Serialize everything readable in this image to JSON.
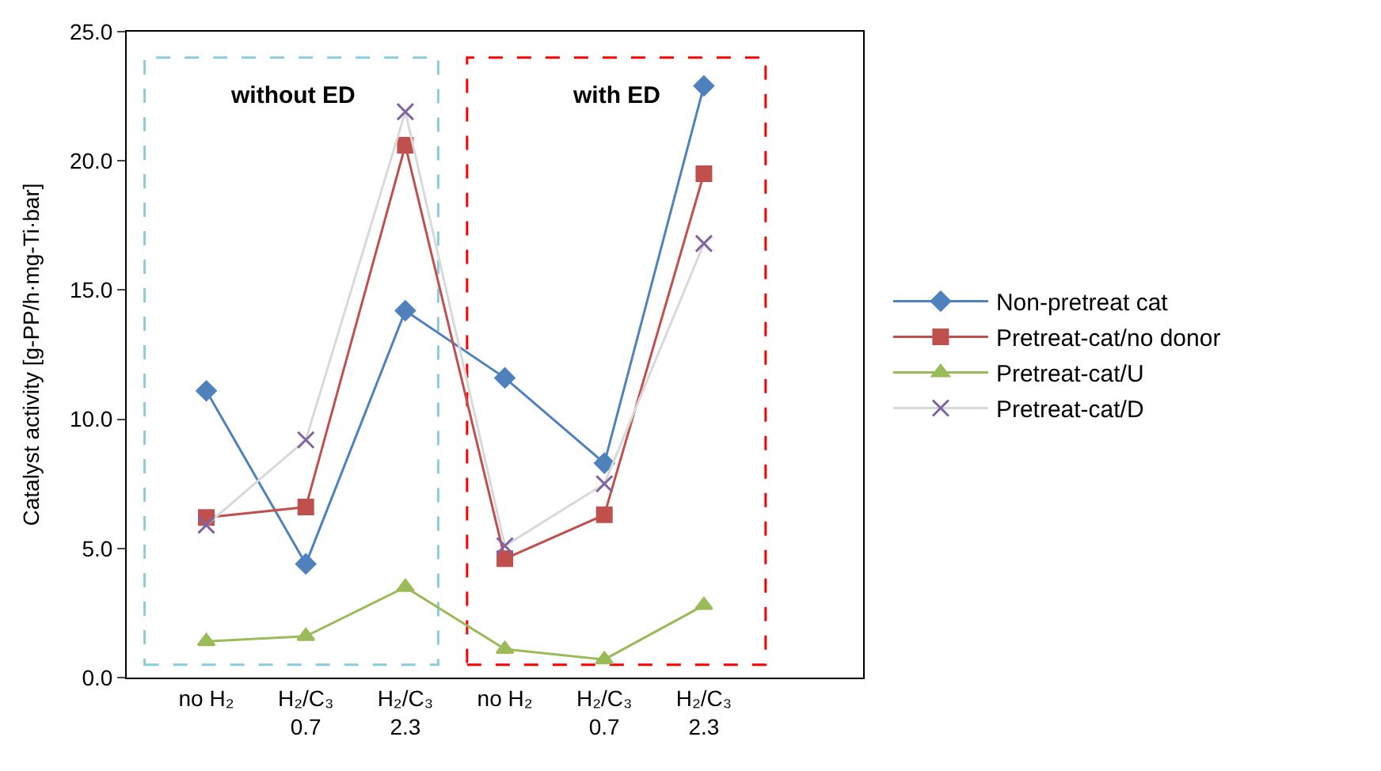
{
  "chart_data": {
    "type": "line",
    "ylabel": "Catalyst activity [g-PP/h·mg-Ti·bar]",
    "categories": [
      "no H₂",
      "H₂/C₃\n0.7",
      "H₂/C₃\n2.3",
      "no H₂",
      "H₂/C₃\n0.7",
      "H₂/C₃\n2.3"
    ],
    "series": [
      {
        "name": "Non-pretreat cat",
        "color": "#4f81bd",
        "marker": "diamond",
        "values": [
          11.1,
          4.4,
          14.2,
          11.6,
          8.3,
          22.9
        ]
      },
      {
        "name": "Pretreat-cat/no donor",
        "color": "#c0504d",
        "marker": "square",
        "values": [
          6.2,
          6.6,
          20.6,
          4.6,
          6.3,
          19.5
        ]
      },
      {
        "name": "Pretreat-cat/U",
        "color": "#9bbb59",
        "marker": "triangle",
        "values": [
          1.4,
          1.6,
          3.5,
          1.1,
          0.7,
          2.8
        ]
      },
      {
        "name": "Pretreat-cat/D",
        "color": "#8064a2",
        "marker": "cross",
        "values": [
          5.9,
          9.2,
          21.9,
          5.1,
          7.5,
          16.8
        ]
      }
    ],
    "ylim": [
      0,
      25
    ],
    "yticks": [
      {
        "value": 0,
        "label": "0.0"
      },
      {
        "value": 5,
        "label": "5.0"
      },
      {
        "value": 10,
        "label": "10.0"
      },
      {
        "value": 15,
        "label": "15.0"
      },
      {
        "value": 20,
        "label": "20.0"
      },
      {
        "value": 25,
        "label": "25.0"
      }
    ],
    "annotations": [
      "without ED",
      "with ED"
    ],
    "grid": false,
    "legend": "right"
  }
}
